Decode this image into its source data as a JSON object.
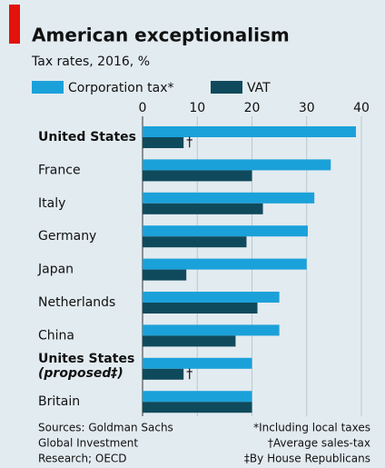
{
  "chart_data": {
    "type": "bar",
    "orientation": "horizontal",
    "title": "American exceptionalism",
    "subtitle": "Tax rates, 2016, %",
    "categories": [
      "United States",
      "France",
      "Italy",
      "Germany",
      "Japan",
      "Netherlands",
      "China",
      "Unites States",
      "Britain"
    ],
    "category_notes": [
      "(proposed‡)"
    ],
    "highlight": [
      0,
      7
    ],
    "annotations": [
      "†",
      "†"
    ],
    "series": [
      {
        "name": "Corporation tax*",
        "color": "#1ba1d9",
        "values": [
          39,
          34.4,
          31.4,
          30.2,
          30,
          25,
          25,
          20,
          20
        ]
      },
      {
        "name": "VAT",
        "color": "#0f4a5c",
        "values": [
          7.5,
          20,
          22,
          19,
          8,
          21,
          17,
          7.5,
          20
        ]
      }
    ],
    "xlim": [
      0,
      40
    ],
    "xticks": [
      0,
      10,
      20,
      30,
      40
    ],
    "grid": true,
    "sources": [
      "Sources: Goldman Sachs",
      "Global Investment",
      "Research; OECD"
    ],
    "notes": [
      "*Including local taxes",
      "†Average sales-tax",
      "‡By House Republicans"
    ]
  }
}
